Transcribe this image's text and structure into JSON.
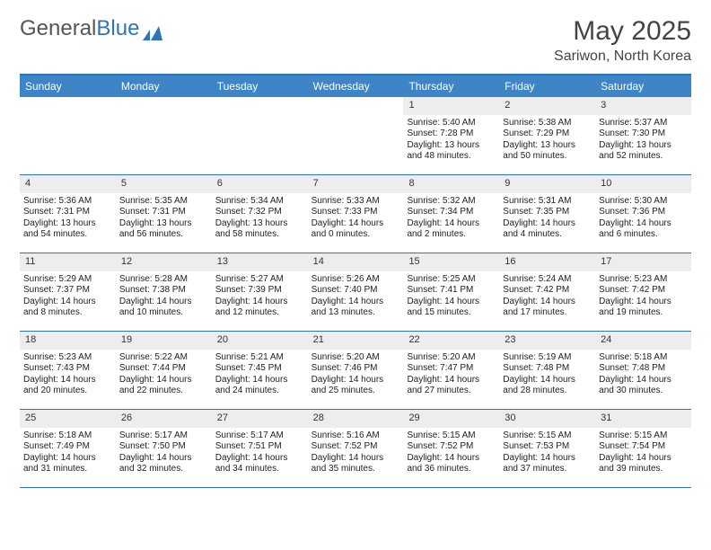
{
  "brand": {
    "part1": "General",
    "part2": "Blue"
  },
  "title": "May 2025",
  "location": "Sariwon, North Korea",
  "colors": {
    "header_bg": "#3d85c6",
    "header_text": "#ffffff",
    "rule": "#2e75b6",
    "daynum_bg": "#ededed",
    "body_text": "#222222",
    "page_bg": "#ffffff"
  },
  "layout": {
    "columns": 7,
    "rows": 5,
    "first_weekday": "Sunday",
    "month_start_col_index": 4
  },
  "typography": {
    "title_fontsize": 30,
    "subtitle_fontsize": 16,
    "dow_fontsize": 12,
    "daynum_fontsize": 11,
    "body_fontsize": 10,
    "font_family": "Arial"
  },
  "days_of_week": [
    "Sunday",
    "Monday",
    "Tuesday",
    "Wednesday",
    "Thursday",
    "Friday",
    "Saturday"
  ],
  "days": {
    "1": {
      "sunrise": "5:40 AM",
      "sunset": "7:28 PM",
      "daylight": "13 hours and 48 minutes."
    },
    "2": {
      "sunrise": "5:38 AM",
      "sunset": "7:29 PM",
      "daylight": "13 hours and 50 minutes."
    },
    "3": {
      "sunrise": "5:37 AM",
      "sunset": "7:30 PM",
      "daylight": "13 hours and 52 minutes."
    },
    "4": {
      "sunrise": "5:36 AM",
      "sunset": "7:31 PM",
      "daylight": "13 hours and 54 minutes."
    },
    "5": {
      "sunrise": "5:35 AM",
      "sunset": "7:31 PM",
      "daylight": "13 hours and 56 minutes."
    },
    "6": {
      "sunrise": "5:34 AM",
      "sunset": "7:32 PM",
      "daylight": "13 hours and 58 minutes."
    },
    "7": {
      "sunrise": "5:33 AM",
      "sunset": "7:33 PM",
      "daylight": "14 hours and 0 minutes."
    },
    "8": {
      "sunrise": "5:32 AM",
      "sunset": "7:34 PM",
      "daylight": "14 hours and 2 minutes."
    },
    "9": {
      "sunrise": "5:31 AM",
      "sunset": "7:35 PM",
      "daylight": "14 hours and 4 minutes."
    },
    "10": {
      "sunrise": "5:30 AM",
      "sunset": "7:36 PM",
      "daylight": "14 hours and 6 minutes."
    },
    "11": {
      "sunrise": "5:29 AM",
      "sunset": "7:37 PM",
      "daylight": "14 hours and 8 minutes."
    },
    "12": {
      "sunrise": "5:28 AM",
      "sunset": "7:38 PM",
      "daylight": "14 hours and 10 minutes."
    },
    "13": {
      "sunrise": "5:27 AM",
      "sunset": "7:39 PM",
      "daylight": "14 hours and 12 minutes."
    },
    "14": {
      "sunrise": "5:26 AM",
      "sunset": "7:40 PM",
      "daylight": "14 hours and 13 minutes."
    },
    "15": {
      "sunrise": "5:25 AM",
      "sunset": "7:41 PM",
      "daylight": "14 hours and 15 minutes."
    },
    "16": {
      "sunrise": "5:24 AM",
      "sunset": "7:42 PM",
      "daylight": "14 hours and 17 minutes."
    },
    "17": {
      "sunrise": "5:23 AM",
      "sunset": "7:42 PM",
      "daylight": "14 hours and 19 minutes."
    },
    "18": {
      "sunrise": "5:23 AM",
      "sunset": "7:43 PM",
      "daylight": "14 hours and 20 minutes."
    },
    "19": {
      "sunrise": "5:22 AM",
      "sunset": "7:44 PM",
      "daylight": "14 hours and 22 minutes."
    },
    "20": {
      "sunrise": "5:21 AM",
      "sunset": "7:45 PM",
      "daylight": "14 hours and 24 minutes."
    },
    "21": {
      "sunrise": "5:20 AM",
      "sunset": "7:46 PM",
      "daylight": "14 hours and 25 minutes."
    },
    "22": {
      "sunrise": "5:20 AM",
      "sunset": "7:47 PM",
      "daylight": "14 hours and 27 minutes."
    },
    "23": {
      "sunrise": "5:19 AM",
      "sunset": "7:48 PM",
      "daylight": "14 hours and 28 minutes."
    },
    "24": {
      "sunrise": "5:18 AM",
      "sunset": "7:48 PM",
      "daylight": "14 hours and 30 minutes."
    },
    "25": {
      "sunrise": "5:18 AM",
      "sunset": "7:49 PM",
      "daylight": "14 hours and 31 minutes."
    },
    "26": {
      "sunrise": "5:17 AM",
      "sunset": "7:50 PM",
      "daylight": "14 hours and 32 minutes."
    },
    "27": {
      "sunrise": "5:17 AM",
      "sunset": "7:51 PM",
      "daylight": "14 hours and 34 minutes."
    },
    "28": {
      "sunrise": "5:16 AM",
      "sunset": "7:52 PM",
      "daylight": "14 hours and 35 minutes."
    },
    "29": {
      "sunrise": "5:15 AM",
      "sunset": "7:52 PM",
      "daylight": "14 hours and 36 minutes."
    },
    "30": {
      "sunrise": "5:15 AM",
      "sunset": "7:53 PM",
      "daylight": "14 hours and 37 minutes."
    },
    "31": {
      "sunrise": "5:15 AM",
      "sunset": "7:54 PM",
      "daylight": "14 hours and 39 minutes."
    }
  },
  "labels": {
    "sunrise": "Sunrise: ",
    "sunset": "Sunset: ",
    "daylight": "Daylight: "
  }
}
